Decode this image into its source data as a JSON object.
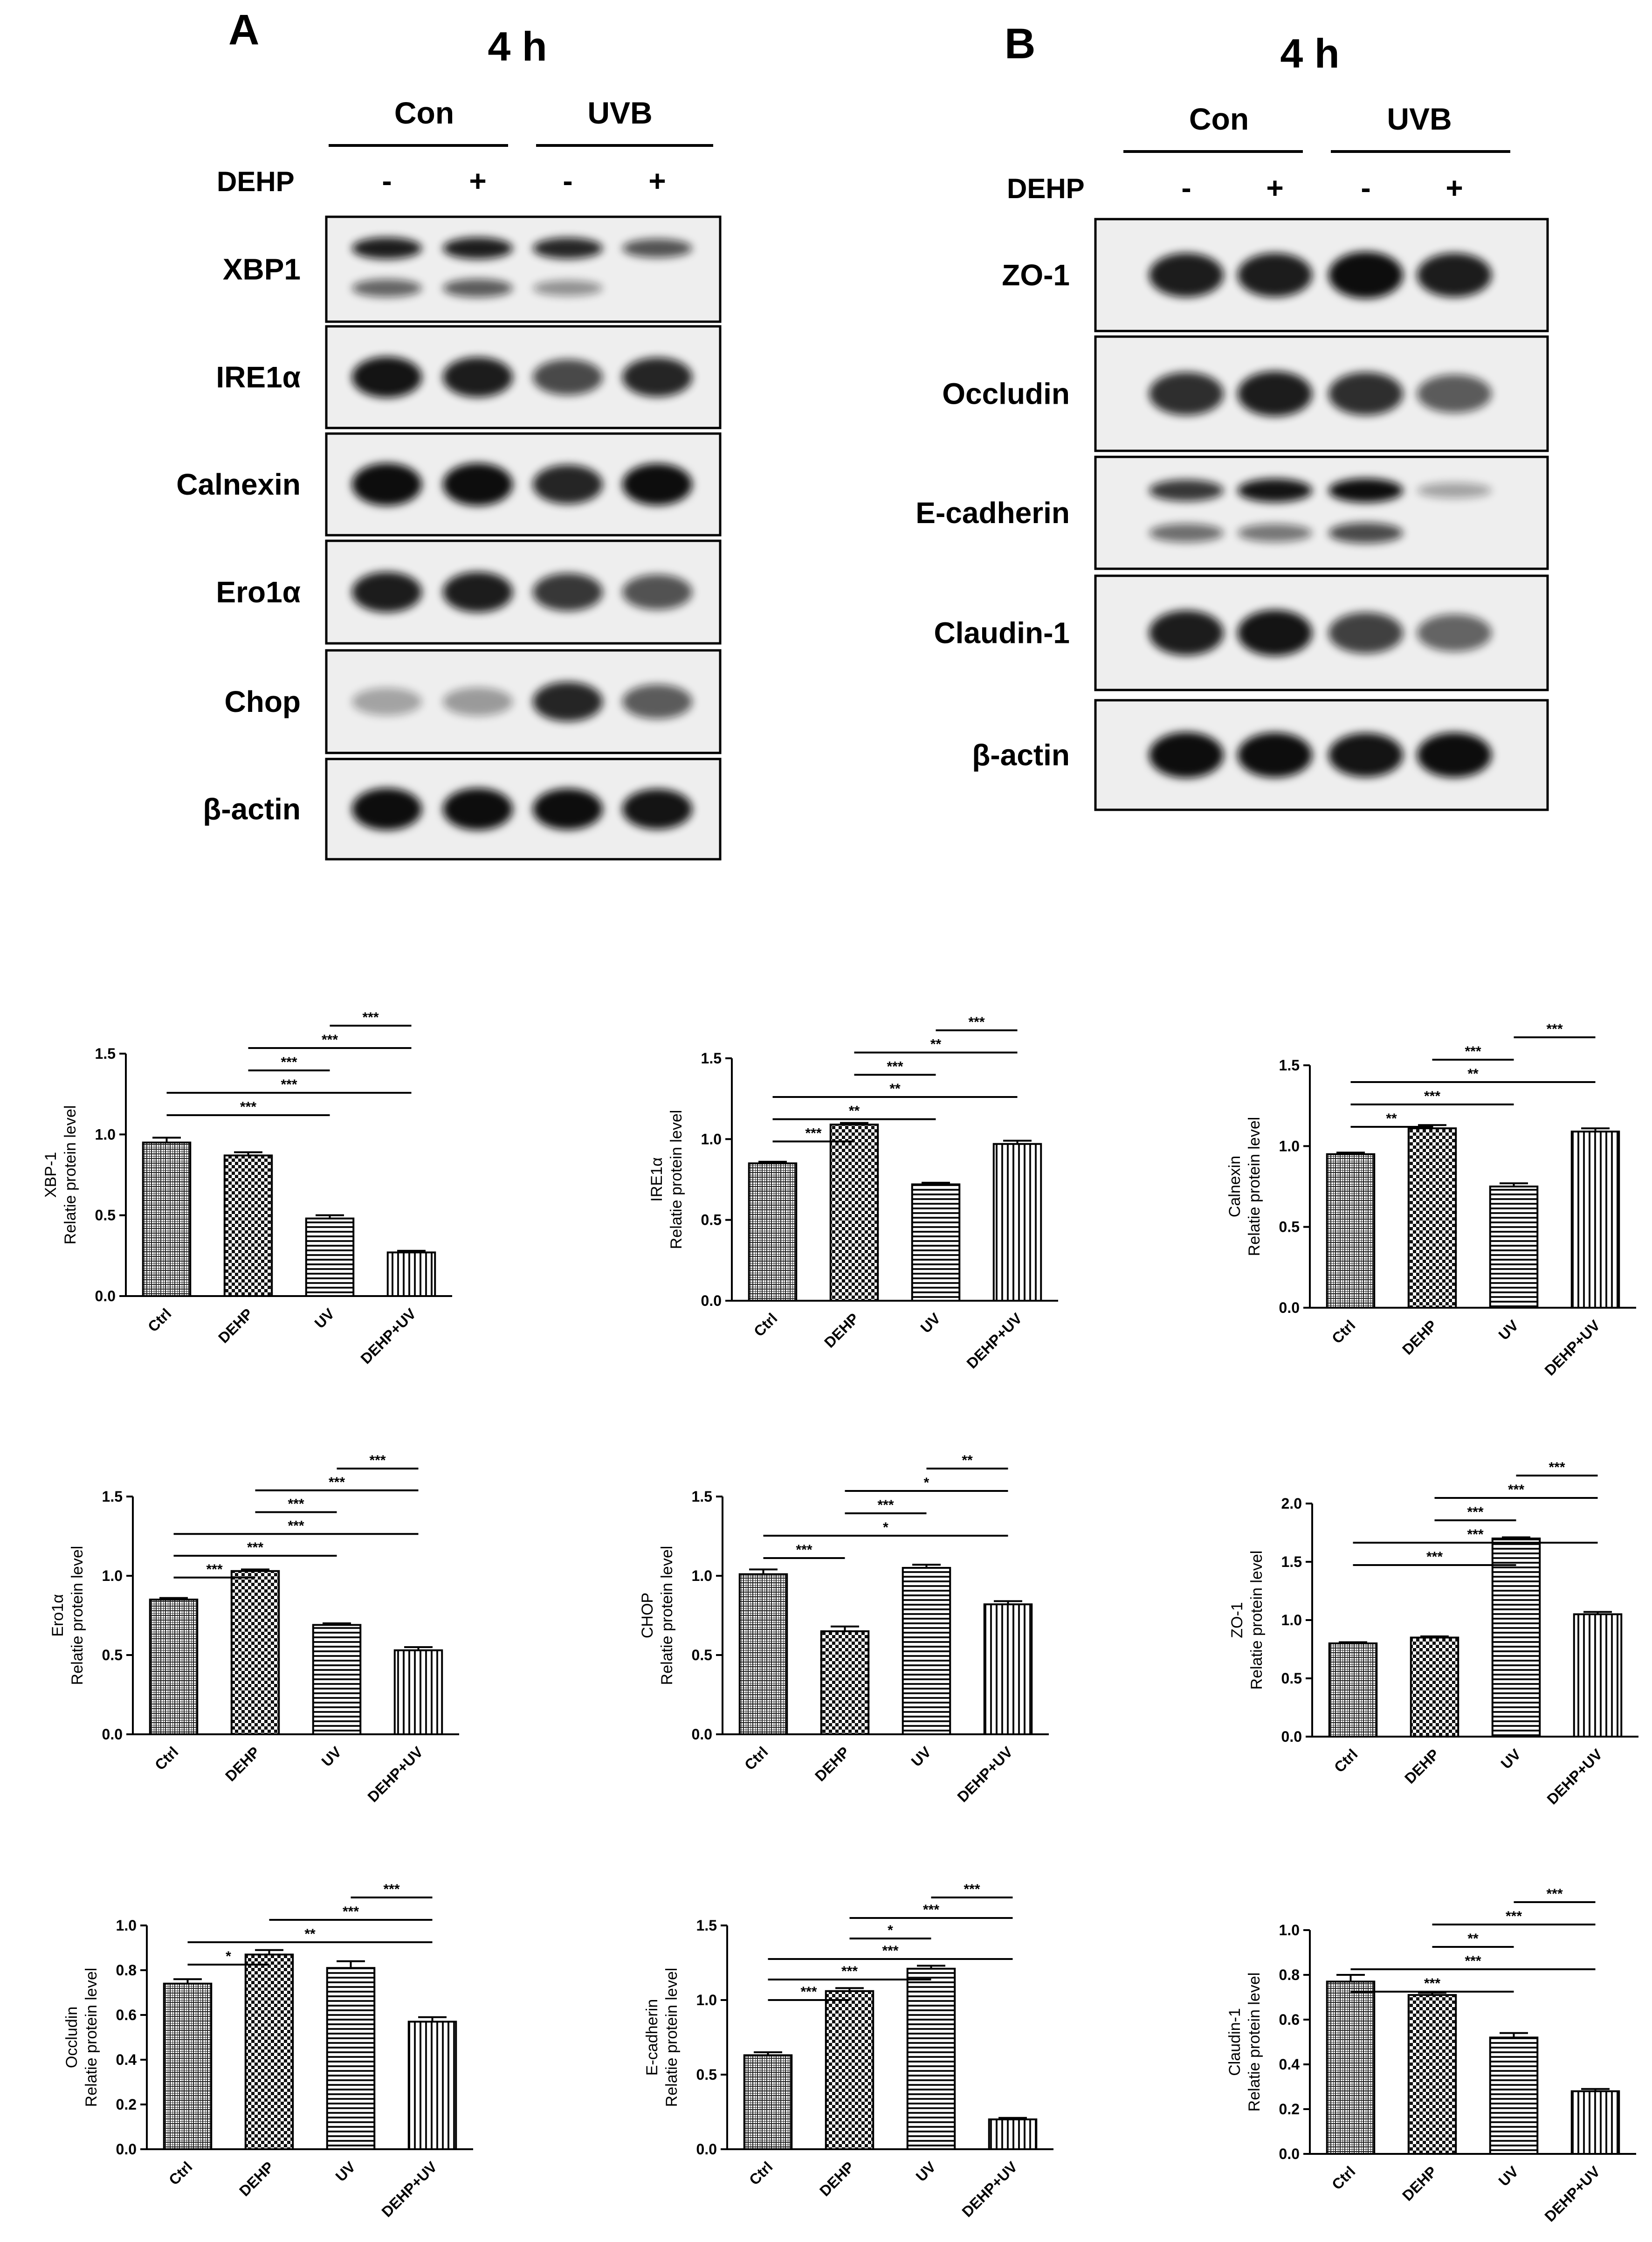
{
  "panel_a": {
    "letter": "A",
    "time": "4 h",
    "groups": [
      "Con",
      "UVB"
    ],
    "treatment_label": "DEHP",
    "signs": [
      "-",
      "+",
      "-",
      "+"
    ],
    "blots": [
      {
        "name": "XBP1",
        "bands": [
          [
            0.85,
            0.85,
            0.8,
            0.55
          ],
          [
            0.45,
            0.5,
            0.2,
            0.0
          ]
        ]
      },
      {
        "name": "IRE1α",
        "bands": [
          [
            0.9,
            0.85,
            0.6,
            0.8
          ]
        ]
      },
      {
        "name": "Calnexin",
        "bands": [
          [
            1.0,
            1.0,
            0.8,
            0.95
          ]
        ]
      },
      {
        "name": "Ero1α",
        "bands": [
          [
            0.85,
            0.85,
            0.7,
            0.55
          ]
        ]
      },
      {
        "name": "Chop",
        "bands": [
          [
            0.1,
            0.15,
            0.8,
            0.5
          ]
        ]
      },
      {
        "name": "β-actin",
        "bands": [
          [
            1.0,
            1.0,
            0.95,
            0.9
          ]
        ]
      }
    ]
  },
  "panel_b": {
    "letter": "B",
    "time": "4 h",
    "groups": [
      "Con",
      "UVB"
    ],
    "treatment_label": "DEHP",
    "signs": [
      "-",
      "+",
      "-",
      "+"
    ],
    "blots": [
      {
        "name": "ZO-1",
        "bands": [
          [
            0.85,
            0.85,
            1.0,
            0.85
          ]
        ]
      },
      {
        "name": "Occludin",
        "bands": [
          [
            0.75,
            0.85,
            0.75,
            0.5
          ]
        ]
      },
      {
        "name": "E-cadherin",
        "bands": [
          [
            0.7,
            0.9,
            0.95,
            0.1
          ],
          [
            0.4,
            0.35,
            0.6,
            0.0
          ]
        ]
      },
      {
        "name": "Claudin-1",
        "bands": [
          [
            0.85,
            0.9,
            0.65,
            0.45
          ]
        ]
      },
      {
        "name": "β-actin",
        "bands": [
          [
            1.0,
            0.95,
            0.9,
            0.95
          ]
        ]
      }
    ]
  },
  "colors": {
    "ink": "#000000",
    "bar_fill": "#ffffff",
    "blot_bg": "#eeeeee",
    "band": "#111111"
  },
  "chart_data": [
    {
      "type": "bar",
      "categories": [
        "Ctrl",
        "DEHP",
        "UV",
        "DEHP+UV"
      ],
      "values": [
        0.95,
        0.87,
        0.48,
        0.27
      ],
      "errors": [
        0.03,
        0.02,
        0.02,
        0.01
      ],
      "ylabel_top": "XBP-1",
      "ylabel": "Relatie protein level",
      "ylim": [
        0,
        1.5
      ],
      "yticks": [
        "0.0",
        "0.5",
        "1.0",
        "1.5"
      ],
      "comparisons": [
        {
          "from": 2,
          "to": 3,
          "label": "***"
        },
        {
          "from": 1,
          "to": 3,
          "label": "***"
        },
        {
          "from": 1,
          "to": 2,
          "label": "***"
        },
        {
          "from": 0,
          "to": 3,
          "label": "***"
        },
        {
          "from": 0,
          "to": 2,
          "label": "***"
        }
      ]
    },
    {
      "type": "bar",
      "categories": [
        "Ctrl",
        "DEHP",
        "UV",
        "DEHP+UV"
      ],
      "values": [
        0.85,
        1.09,
        0.72,
        0.97
      ],
      "errors": [
        0.01,
        0.01,
        0.01,
        0.02
      ],
      "ylabel_top": "IRE1α",
      "ylabel": "Relatie protein level",
      "ylim": [
        0,
        1.5
      ],
      "yticks": [
        "0.0",
        "0.5",
        "1.0",
        "1.5"
      ],
      "comparisons": [
        {
          "from": 2,
          "to": 3,
          "label": "***"
        },
        {
          "from": 1,
          "to": 3,
          "label": "**"
        },
        {
          "from": 1,
          "to": 2,
          "label": "***"
        },
        {
          "from": 0,
          "to": 3,
          "label": "**"
        },
        {
          "from": 0,
          "to": 2,
          "label": "**"
        },
        {
          "from": 0,
          "to": 1,
          "label": "***"
        }
      ]
    },
    {
      "type": "bar",
      "categories": [
        "Ctrl",
        "DEHP",
        "UV",
        "DEHP+UV"
      ],
      "values": [
        0.95,
        1.11,
        0.75,
        1.09
      ],
      "errors": [
        0.01,
        0.02,
        0.02,
        0.02
      ],
      "ylabel_top": "Calnexin",
      "ylabel": "Relatie protein level",
      "ylim": [
        0,
        1.5
      ],
      "yticks": [
        "0.0",
        "0.5",
        "1.0",
        "1.5"
      ],
      "comparisons": [
        {
          "from": 2,
          "to": 3,
          "label": "***"
        },
        {
          "from": 1,
          "to": 2,
          "label": "***"
        },
        {
          "from": 0,
          "to": 3,
          "label": "**"
        },
        {
          "from": 0,
          "to": 2,
          "label": "***"
        },
        {
          "from": 0,
          "to": 1,
          "label": "**"
        }
      ]
    },
    {
      "type": "bar",
      "categories": [
        "Ctrl",
        "DEHP",
        "UV",
        "DEHP+UV"
      ],
      "values": [
        0.85,
        1.03,
        0.69,
        0.53
      ],
      "errors": [
        0.01,
        0.01,
        0.01,
        0.02
      ],
      "ylabel_top": "Ero1α",
      "ylabel": "Relatie protein level",
      "ylim": [
        0,
        1.5
      ],
      "yticks": [
        "0.0",
        "0.5",
        "1.0",
        "1.5"
      ],
      "comparisons": [
        {
          "from": 2,
          "to": 3,
          "label": "***"
        },
        {
          "from": 1,
          "to": 3,
          "label": "***"
        },
        {
          "from": 1,
          "to": 2,
          "label": "***"
        },
        {
          "from": 0,
          "to": 3,
          "label": "***"
        },
        {
          "from": 0,
          "to": 2,
          "label": "***"
        },
        {
          "from": 0,
          "to": 1,
          "label": "***"
        }
      ]
    },
    {
      "type": "bar",
      "categories": [
        "Ctrl",
        "DEHP",
        "UV",
        "DEHP+UV"
      ],
      "values": [
        1.01,
        0.65,
        1.05,
        0.82
      ],
      "errors": [
        0.03,
        0.03,
        0.02,
        0.02
      ],
      "ylabel_top": "CHOP",
      "ylabel": "Relatie protein level",
      "ylim": [
        0,
        1.5
      ],
      "yticks": [
        "0.0",
        "0.5",
        "1.0",
        "1.5"
      ],
      "comparisons": [
        {
          "from": 2,
          "to": 3,
          "label": "**"
        },
        {
          "from": 1,
          "to": 3,
          "label": "*"
        },
        {
          "from": 1,
          "to": 2,
          "label": "***"
        },
        {
          "from": 0,
          "to": 3,
          "label": "*"
        },
        {
          "from": 0,
          "to": 1,
          "label": "***"
        }
      ]
    },
    {
      "type": "bar",
      "categories": [
        "Ctrl",
        "DEHP",
        "UV",
        "DEHP+UV"
      ],
      "values": [
        0.8,
        0.85,
        1.7,
        1.05
      ],
      "errors": [
        0.01,
        0.01,
        0.01,
        0.02
      ],
      "ylabel_top": "ZO-1",
      "ylabel": "Relatie protein level",
      "ylim": [
        0,
        2.0
      ],
      "yticks": [
        "0.0",
        "0.5",
        "1.0",
        "1.5",
        "2.0"
      ],
      "comparisons": [
        {
          "from": 2,
          "to": 3,
          "label": "***"
        },
        {
          "from": 1,
          "to": 3,
          "label": "***"
        },
        {
          "from": 1,
          "to": 2,
          "label": "***"
        },
        {
          "from": 0,
          "to": 3,
          "label": "***"
        },
        {
          "from": 0,
          "to": 2,
          "label": "***"
        }
      ]
    },
    {
      "type": "bar",
      "categories": [
        "Ctrl",
        "DEHP",
        "UV",
        "DEHP+UV"
      ],
      "values": [
        0.74,
        0.87,
        0.81,
        0.57
      ],
      "errors": [
        0.02,
        0.02,
        0.03,
        0.02
      ],
      "ylabel_top": "Occludin",
      "ylabel": "Relatie protein level",
      "ylim": [
        0,
        1.0
      ],
      "yticks": [
        "0.0",
        "0.2",
        "0.4",
        "0.6",
        "0.8",
        "1.0"
      ],
      "comparisons": [
        {
          "from": 2,
          "to": 3,
          "label": "***"
        },
        {
          "from": 1,
          "to": 3,
          "label": "***"
        },
        {
          "from": 0,
          "to": 3,
          "label": "**"
        },
        {
          "from": 0,
          "to": 1,
          "label": "*"
        }
      ]
    },
    {
      "type": "bar",
      "categories": [
        "Ctrl",
        "DEHP",
        "UV",
        "DEHP+UV"
      ],
      "values": [
        0.63,
        1.06,
        1.21,
        0.2
      ],
      "errors": [
        0.02,
        0.02,
        0.02,
        0.01
      ],
      "ylabel_top": "E-cadherin",
      "ylabel": "Relatie protein level",
      "ylim": [
        0,
        1.5
      ],
      "yticks": [
        "0.0",
        "0.5",
        "1.0",
        "1.5"
      ],
      "comparisons": [
        {
          "from": 2,
          "to": 3,
          "label": "***"
        },
        {
          "from": 1,
          "to": 3,
          "label": "***"
        },
        {
          "from": 1,
          "to": 2,
          "label": "*"
        },
        {
          "from": 0,
          "to": 3,
          "label": "***"
        },
        {
          "from": 0,
          "to": 2,
          "label": "***"
        },
        {
          "from": 0,
          "to": 1,
          "label": "***"
        }
      ]
    },
    {
      "type": "bar",
      "categories": [
        "Ctrl",
        "DEHP",
        "UV",
        "DEHP+UV"
      ],
      "values": [
        0.77,
        0.71,
        0.52,
        0.28
      ],
      "errors": [
        0.03,
        0.01,
        0.02,
        0.01
      ],
      "ylabel_top": "Claudin-1",
      "ylabel": "Relatie protein level",
      "ylim": [
        0,
        1.0
      ],
      "yticks": [
        "0.0",
        "0.2",
        "0.4",
        "0.6",
        "0.8",
        "1.0"
      ],
      "comparisons": [
        {
          "from": 2,
          "to": 3,
          "label": "***"
        },
        {
          "from": 1,
          "to": 3,
          "label": "***"
        },
        {
          "from": 1,
          "to": 2,
          "label": "**"
        },
        {
          "from": 0,
          "to": 3,
          "label": "***"
        },
        {
          "from": 0,
          "to": 2,
          "label": "***"
        }
      ]
    }
  ]
}
